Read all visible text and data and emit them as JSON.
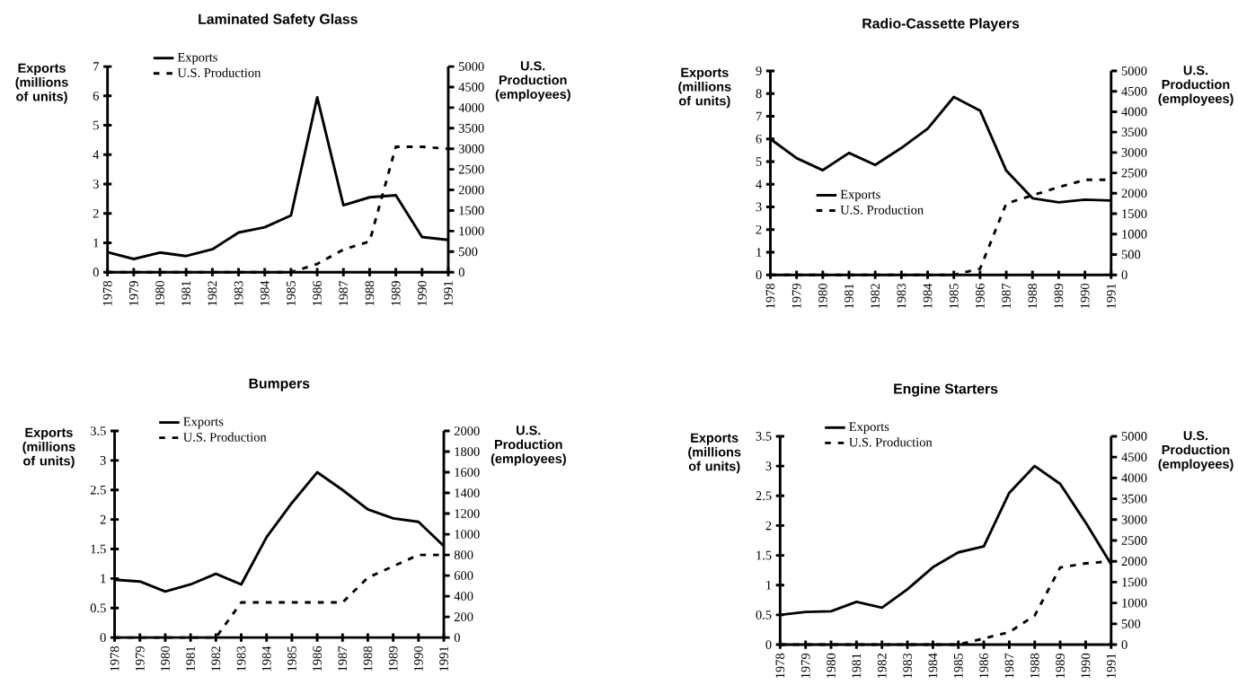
{
  "chart_data": [
    {
      "type": "line",
      "title": "Laminated Safety Glass",
      "ylabel": "Exports (millions of units)",
      "y2label": "U.S. Production (employees)",
      "categories": [
        "1978",
        "1979",
        "1980",
        "1981",
        "1982",
        "1983",
        "1984",
        "1985",
        "1986",
        "1987",
        "1988",
        "1989",
        "1990",
        "1991"
      ],
      "series": [
        {
          "name": "Exports",
          "color": "#000000",
          "line_style": "solid",
          "values": [
            0.68,
            0.45,
            0.67,
            0.55,
            0.78,
            1.35,
            1.53,
            1.93,
            5.95,
            2.28,
            2.55,
            2.62,
            1.2,
            1.1
          ]
        },
        {
          "name": "U.S. Production",
          "color": "#000000",
          "line_style": "dashed",
          "axis": "y2",
          "values": [
            0,
            0,
            0,
            0,
            0,
            0,
            0,
            0,
            200,
            550,
            750,
            3050,
            3050,
            3000
          ]
        }
      ],
      "ylim": [
        0,
        7
      ],
      "yticks": [
        0,
        1,
        2,
        3,
        4,
        5,
        6,
        7
      ],
      "y2lim": [
        0,
        5000
      ],
      "y2ticks": [
        0,
        500,
        1000,
        1500,
        2000,
        2500,
        3000,
        3500,
        4000,
        4500,
        5000
      ],
      "legend": "top left"
    },
    {
      "type": "line",
      "title": "Radio-Cassette Players",
      "ylabel": "Exports (millions of units)",
      "y2label": "U.S. Production (employees)",
      "categories": [
        "1978",
        "1979",
        "1980",
        "1981",
        "1982",
        "1983",
        "1984",
        "1985",
        "1986",
        "1987",
        "1988",
        "1989",
        "1990",
        "1991"
      ],
      "series": [
        {
          "name": "Exports",
          "color": "#000000",
          "line_style": "solid",
          "values": [
            6.0,
            5.15,
            4.62,
            5.38,
            4.85,
            5.6,
            6.45,
            7.85,
            7.25,
            4.6,
            3.38,
            3.2,
            3.32,
            3.28
          ]
        },
        {
          "name": "U.S. Production",
          "color": "#000000",
          "line_style": "dashed",
          "axis": "y2",
          "values": [
            0,
            0,
            0,
            0,
            0,
            0,
            0,
            0,
            150,
            1750,
            1950,
            2150,
            2330,
            2330
          ]
        }
      ],
      "ylim": [
        0,
        9
      ],
      "yticks": [
        0,
        1,
        2,
        3,
        4,
        5,
        6,
        7,
        8,
        9
      ],
      "y2lim": [
        0,
        5000
      ],
      "y2ticks": [
        0,
        500,
        1000,
        1500,
        2000,
        2500,
        3000,
        3500,
        4000,
        4500,
        5000
      ],
      "legend": "left"
    },
    {
      "type": "line",
      "title": "Bumpers",
      "ylabel": "Exports (millions of units)",
      "y2label": "U.S. Production (employees)",
      "categories": [
        "1978",
        "1979",
        "1980",
        "1981",
        "1982",
        "1983",
        "1984",
        "1985",
        "1986",
        "1987",
        "1988",
        "1989",
        "1990",
        "1991"
      ],
      "series": [
        {
          "name": "Exports",
          "color": "#000000",
          "line_style": "solid",
          "values": [
            0.98,
            0.95,
            0.78,
            0.9,
            1.08,
            0.9,
            1.7,
            2.28,
            2.8,
            2.5,
            2.17,
            2.02,
            1.96,
            1.55
          ]
        },
        {
          "name": "U.S. Production",
          "color": "#000000",
          "line_style": "dashed",
          "axis": "y2",
          "values": [
            0,
            0,
            0,
            0,
            0,
            340,
            340,
            340,
            340,
            340,
            580,
            690,
            800,
            800
          ]
        }
      ],
      "ylim": [
        0,
        3.5
      ],
      "yticks": [
        0,
        0.5,
        1,
        1.5,
        2,
        2.5,
        3,
        3.5
      ],
      "y2lim": [
        0,
        2000
      ],
      "y2ticks": [
        0,
        200,
        400,
        600,
        800,
        1000,
        1200,
        1400,
        1600,
        1800,
        2000
      ],
      "legend": "top left"
    },
    {
      "type": "line",
      "title": "Engine Starters",
      "ylabel": "Exports (millions of units)",
      "y2label": "U.S. Production (employees)",
      "categories": [
        "1978",
        "1979",
        "1980",
        "1981",
        "1982",
        "1983",
        "1984",
        "1985",
        "1986",
        "1987",
        "1988",
        "1989",
        "1990",
        "1991"
      ],
      "series": [
        {
          "name": "Exports",
          "color": "#000000",
          "line_style": "solid",
          "values": [
            0.5,
            0.55,
            0.56,
            0.72,
            0.62,
            0.93,
            1.3,
            1.55,
            1.65,
            2.55,
            3.0,
            2.7,
            2.05,
            1.35
          ]
        },
        {
          "name": "U.S. Production",
          "color": "#000000",
          "line_style": "dashed",
          "axis": "y2",
          "values": [
            0,
            0,
            0,
            0,
            0,
            0,
            0,
            0,
            150,
            300,
            700,
            1850,
            1950,
            2000
          ]
        }
      ],
      "ylim": [
        0,
        3.5
      ],
      "yticks": [
        0,
        0.5,
        1,
        1.5,
        2,
        2.5,
        3,
        3.5
      ],
      "y2lim": [
        0,
        5000
      ],
      "y2ticks": [
        0,
        500,
        1000,
        1500,
        2000,
        2500,
        3000,
        3500,
        4000,
        4500,
        5000
      ],
      "legend": "top left"
    }
  ]
}
